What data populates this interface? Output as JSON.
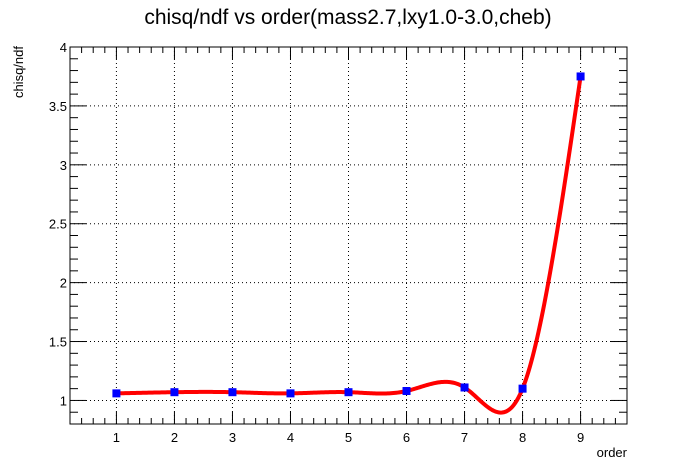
{
  "chart_data": {
    "type": "line",
    "title": "chisq/ndf vs order(mass2.7,lxy1.0-3.0,cheb)",
    "xlabel": "order",
    "ylabel": "chisq/ndf",
    "xlim": [
      0.2,
      9.8
    ],
    "ylim": [
      0.8,
      4.0
    ],
    "x_ticks": [
      1,
      2,
      3,
      4,
      5,
      6,
      7,
      8,
      9
    ],
    "y_ticks": [
      1,
      1.5,
      2,
      2.5,
      3,
      3.5,
      4
    ],
    "x_tick_labels": [
      "1",
      "2",
      "3",
      "4",
      "5",
      "6",
      "7",
      "8",
      "9"
    ],
    "y_tick_labels": [
      "1",
      "1.5",
      "2",
      "2.5",
      "3",
      "3.5",
      "4"
    ],
    "grid": true,
    "series": [
      {
        "marker": "square",
        "color": "#0000ff",
        "curve_color": "#ff0000",
        "x": [
          1,
          2,
          3,
          4,
          5,
          6,
          7,
          8,
          9
        ],
        "y": [
          1.06,
          1.07,
          1.07,
          1.06,
          1.07,
          1.08,
          1.11,
          1.1,
          3.75
        ]
      }
    ]
  }
}
